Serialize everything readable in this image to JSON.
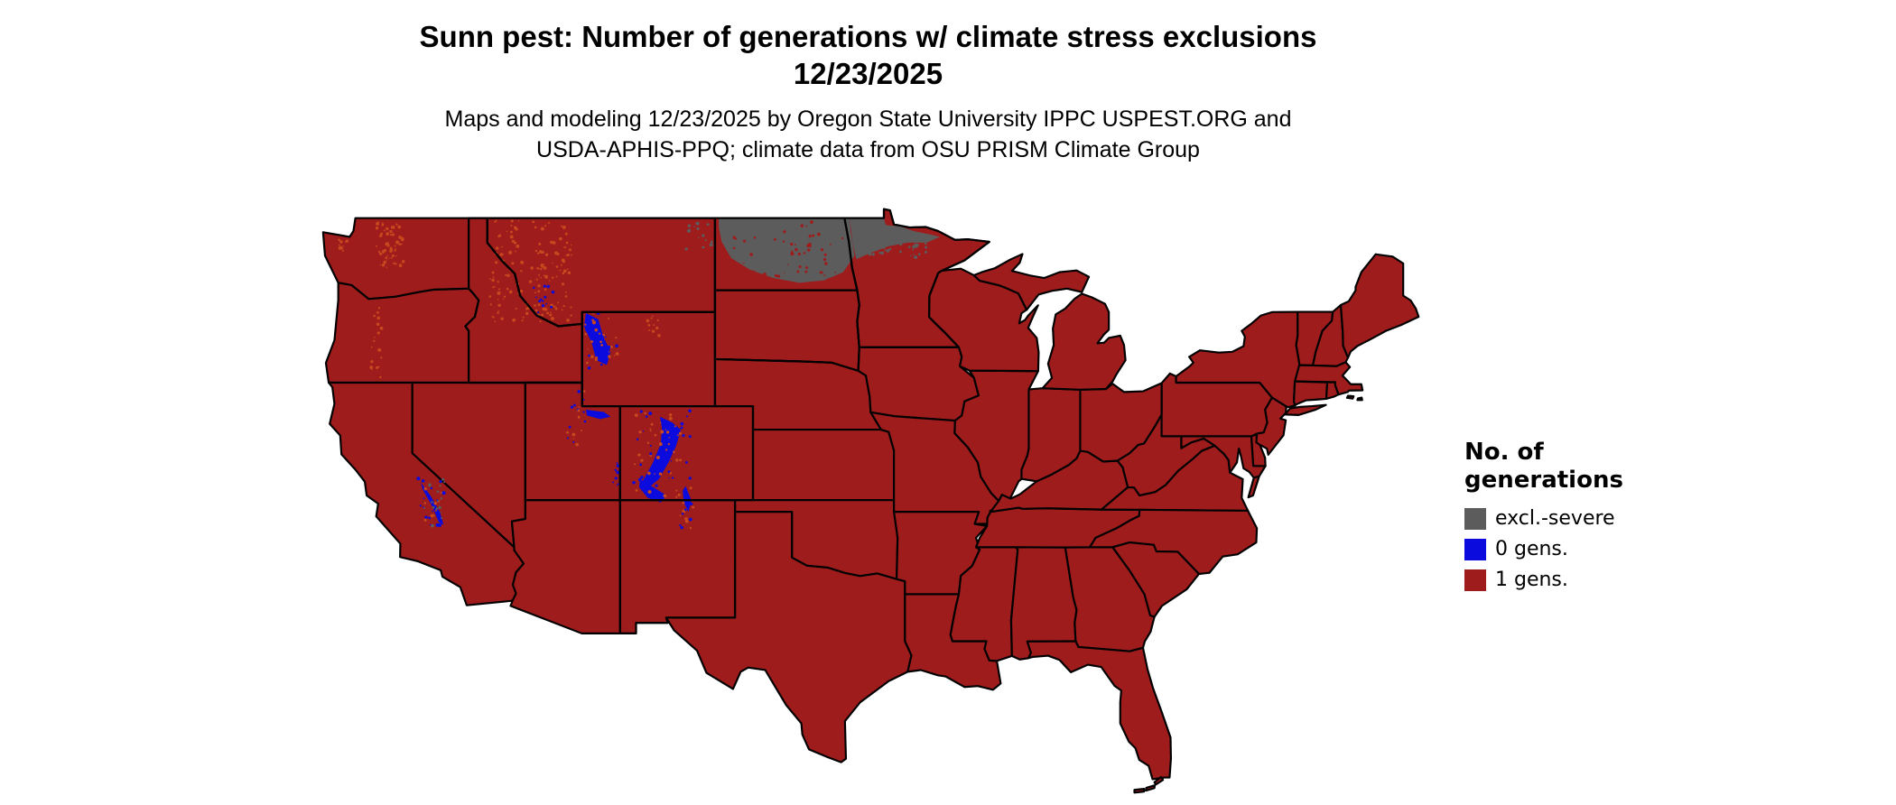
{
  "title": {
    "line1": "Sunn pest: Number of generations w/ climate stress exclusions",
    "line2": "12/23/2025"
  },
  "subtitle": {
    "line1": "Maps and modeling 12/23/2025 by Oregon State University IPPC USPEST.ORG and",
    "line2": "USDA-APHIS-PPQ; climate data from OSU PRISM Climate Group"
  },
  "legend": {
    "title_line1": "No. of",
    "title_line2": "generations",
    "items": [
      {
        "label": "excl.-severe",
        "color": "#5c5c5c"
      },
      {
        "label": "0 gens.",
        "color": "#0b0bdd"
      },
      {
        "label": "1 gens.",
        "color": "#9e1c1c"
      }
    ]
  },
  "map": {
    "region": "Contiguous United States",
    "border_color": "#000000",
    "fill_color": "#9e1c1c",
    "speckle_color": "#c8481e",
    "excl_severe_area": "northern North Dakota and far-northern Minnesota",
    "zero_gens_areas": "Rocky Mountains (WY, CO, UT) and Sierra Nevada (CA)"
  }
}
